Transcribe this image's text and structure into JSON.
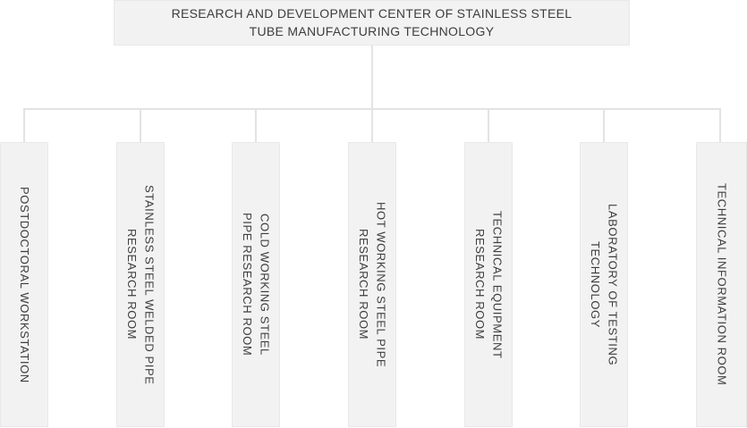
{
  "chart_type": "org-chart",
  "root": {
    "title": "RESEARCH AND DEVELOPMENT CENTER OF STAINLESS STEEL\nTUBE MANUFACTURING TECHNOLOGY"
  },
  "departments": [
    {
      "label": "POSTDOCTORAL WORKSTATION"
    },
    {
      "label": "STAINLESS STEEL WELDED PIPE\nRESEARCH ROOM"
    },
    {
      "label": "COLD WORKING STEEL\nPIPE RESEARCH ROOM"
    },
    {
      "label": "HOT WORKING STEEL PIPE\nRESEARCH ROOM"
    },
    {
      "label": "TECHNICAL EQUIPMENT\nRESEARCH ROOM"
    },
    {
      "label": "LABORATORY OF TESTING\nTECHNOLOGY"
    },
    {
      "label": "TECHNICAL INFORMATION ROOM"
    }
  ],
  "colors": {
    "box_fill": "#f2f2f2",
    "box_border": "#e8e8e8",
    "connector_line": "#e3e3e3",
    "text": "#3d3d3d",
    "background": "#ffffff"
  }
}
